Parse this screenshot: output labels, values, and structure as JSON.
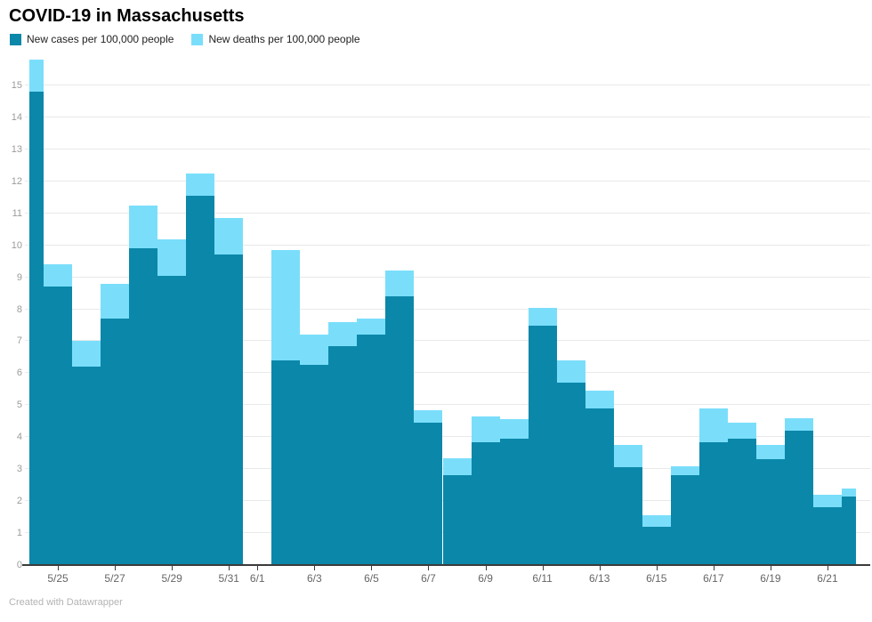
{
  "title": "COVID-19 in Massachusetts",
  "legend": {
    "items": [
      {
        "label": "New cases per 100,000 people",
        "color": "#0b87a9"
      },
      {
        "label": "New deaths per 100,000 people",
        "color": "#7adefb"
      }
    ]
  },
  "footer": "Created with Datawrapper",
  "colors": {
    "cases": "#0b87a9",
    "deaths": "#7adefb",
    "gridline": "#e9e9e9",
    "axis": "#3b3b3b",
    "y_label": "#9b9b9b",
    "x_label": "#666666"
  },
  "chart_data": {
    "type": "bar",
    "stacked": true,
    "title": "COVID-19 in Massachusetts",
    "xlabel": "",
    "ylabel": "",
    "ylim": [
      0,
      16
    ],
    "y_ticks": [
      0,
      1,
      2,
      3,
      4,
      5,
      6,
      7,
      8,
      9,
      10,
      11,
      12,
      13,
      14,
      15
    ],
    "grid": true,
    "legend_position": "top-left",
    "categories": [
      "5/24",
      "5/25",
      "5/26",
      "5/27",
      "5/28",
      "5/29",
      "5/30",
      "5/31",
      "6/1",
      "6/2",
      "6/3",
      "6/4",
      "6/5",
      "6/6",
      "6/7",
      "6/8",
      "6/9",
      "6/10",
      "6/11",
      "6/12",
      "6/13",
      "6/14",
      "6/15",
      "6/16",
      "6/17",
      "6/18",
      "6/19",
      "6/20",
      "6/21",
      "6/22"
    ],
    "series": [
      {
        "name": "New cases per 100,000 people",
        "color": "#0b87a9",
        "values": [
          14.8,
          8.7,
          6.2,
          7.7,
          9.9,
          9.05,
          11.55,
          9.7,
          0,
          6.4,
          6.25,
          6.85,
          7.2,
          8.4,
          4.45,
          2.8,
          3.85,
          3.95,
          7.5,
          5.7,
          4.9,
          3.05,
          1.2,
          2.8,
          3.85,
          3.95,
          3.3,
          4.2,
          1.8,
          2.15
        ]
      },
      {
        "name": "New deaths per 100,000 people",
        "color": "#7adefb",
        "values": [
          1.0,
          0.7,
          0.8,
          1.1,
          1.35,
          1.15,
          0.7,
          1.15,
          0,
          3.45,
          0.95,
          0.75,
          0.5,
          0.8,
          0.4,
          0.55,
          0.8,
          0.6,
          0.55,
          0.7,
          0.55,
          0.7,
          0.35,
          0.3,
          1.05,
          0.5,
          0.45,
          0.4,
          0.4,
          0.25
        ]
      }
    ],
    "x_ticks": [
      {
        "label": "5/25",
        "index": 1
      },
      {
        "label": "5/27",
        "index": 3
      },
      {
        "label": "5/29",
        "index": 5
      },
      {
        "label": "5/31",
        "index": 7
      },
      {
        "label": "6/1",
        "index": 8
      },
      {
        "label": "6/3",
        "index": 10
      },
      {
        "label": "6/5",
        "index": 12
      },
      {
        "label": "6/7",
        "index": 14
      },
      {
        "label": "6/9",
        "index": 16
      },
      {
        "label": "6/11",
        "index": 18
      },
      {
        "label": "6/13",
        "index": 20
      },
      {
        "label": "6/15",
        "index": 22
      },
      {
        "label": "6/17",
        "index": 24
      },
      {
        "label": "6/19",
        "index": 26
      },
      {
        "label": "6/21",
        "index": 28
      }
    ],
    "notes": "No bar rendered for 6/1; first (5/24) and last (6/22) bars are clipped to half width at the plot edges."
  }
}
